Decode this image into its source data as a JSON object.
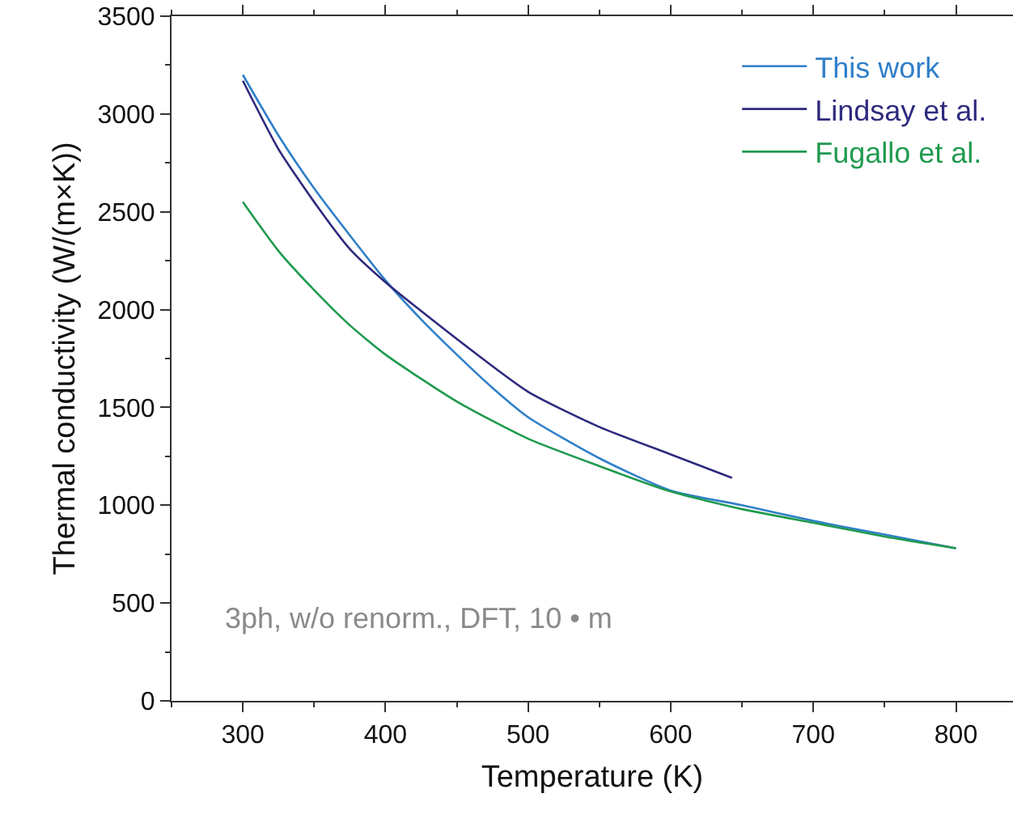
{
  "chart_data": {
    "type": "line",
    "xlabel": "Temperature (K)",
    "ylabel": "Thermal conductivity (W/(m×K))",
    "xlim": [
      250,
      840
    ],
    "xticks": [
      300,
      400,
      500,
      600,
      700,
      800
    ],
    "ylim": [
      0,
      3500
    ],
    "yticks": [
      0,
      500,
      1000,
      1500,
      2000,
      2500,
      3000,
      3500
    ],
    "grid": false,
    "legend": "top right",
    "marker": "none",
    "line_style": "solid",
    "annotations": [
      "3ph, w/o renorm., DFT, 10 • m"
    ],
    "series": [
      {
        "name": "This work",
        "color": "#2f7fc8",
        "x": [
          300,
          325,
          350,
          375,
          400,
          425,
          450,
          475,
          500,
          550,
          600,
          650,
          700,
          750,
          800
        ],
        "values": [
          3200,
          2890,
          2620,
          2380,
          2150,
          1950,
          1770,
          1600,
          1450,
          1240,
          1075,
          1000,
          920,
          850,
          780
        ]
      },
      {
        "name": "Lindsay et al.",
        "color": "#2e2a7e",
        "x": [
          300,
          325,
          350,
          375,
          400,
          450,
          500,
          550,
          600,
          643
        ],
        "values": [
          3170,
          2820,
          2550,
          2310,
          2140,
          1850,
          1580,
          1400,
          1260,
          1140
        ]
      },
      {
        "name": "Fugallo et al.",
        "color": "#1f9a4e",
        "x": [
          300,
          325,
          350,
          375,
          400,
          450,
          500,
          550,
          600,
          650,
          700,
          750,
          800
        ],
        "values": [
          2550,
          2300,
          2100,
          1920,
          1770,
          1530,
          1340,
          1200,
          1070,
          980,
          910,
          840,
          780
        ]
      }
    ]
  }
}
